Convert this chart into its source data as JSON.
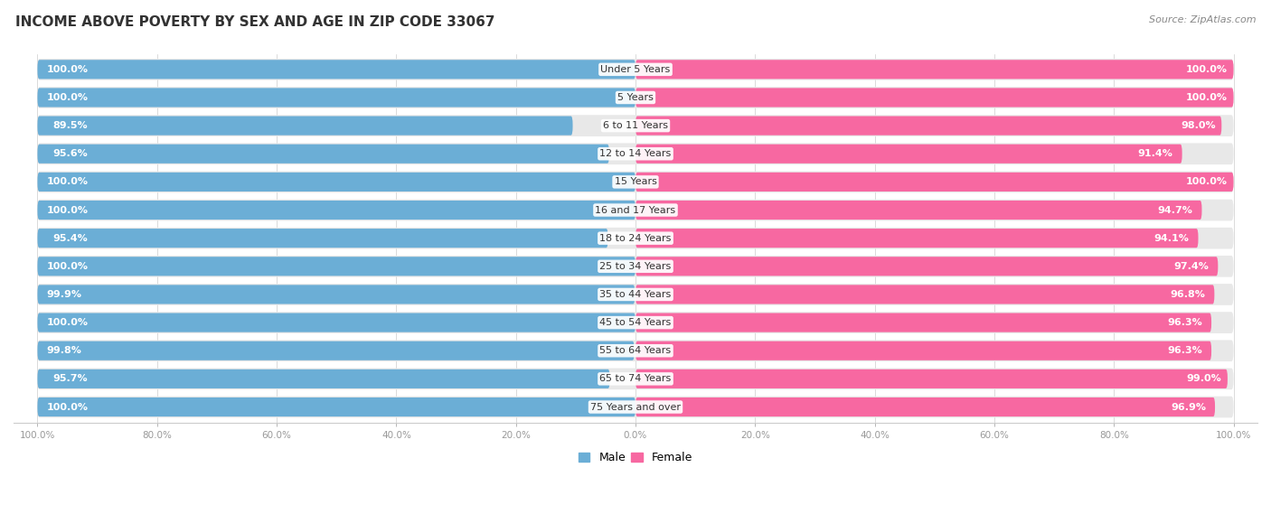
{
  "title": "INCOME ABOVE POVERTY BY SEX AND AGE IN ZIP CODE 33067",
  "source": "Source: ZipAtlas.com",
  "categories": [
    "Under 5 Years",
    "5 Years",
    "6 to 11 Years",
    "12 to 14 Years",
    "15 Years",
    "16 and 17 Years",
    "18 to 24 Years",
    "25 to 34 Years",
    "35 to 44 Years",
    "45 to 54 Years",
    "55 to 64 Years",
    "65 to 74 Years",
    "75 Years and over"
  ],
  "male_values": [
    100.0,
    100.0,
    89.5,
    95.6,
    100.0,
    100.0,
    95.4,
    100.0,
    99.9,
    100.0,
    99.8,
    95.7,
    100.0
  ],
  "female_values": [
    100.0,
    100.0,
    98.0,
    91.4,
    100.0,
    94.7,
    94.1,
    97.4,
    96.8,
    96.3,
    96.3,
    99.0,
    96.9
  ],
  "male_color": "#6baed6",
  "female_color": "#f768a1",
  "male_label": "Male",
  "female_label": "Female",
  "bg_color": "#ffffff",
  "row_bg_color": "#e8e8e8",
  "title_fontsize": 11,
  "source_fontsize": 8,
  "label_fontsize": 8,
  "category_fontsize": 8,
  "legend_fontsize": 9
}
